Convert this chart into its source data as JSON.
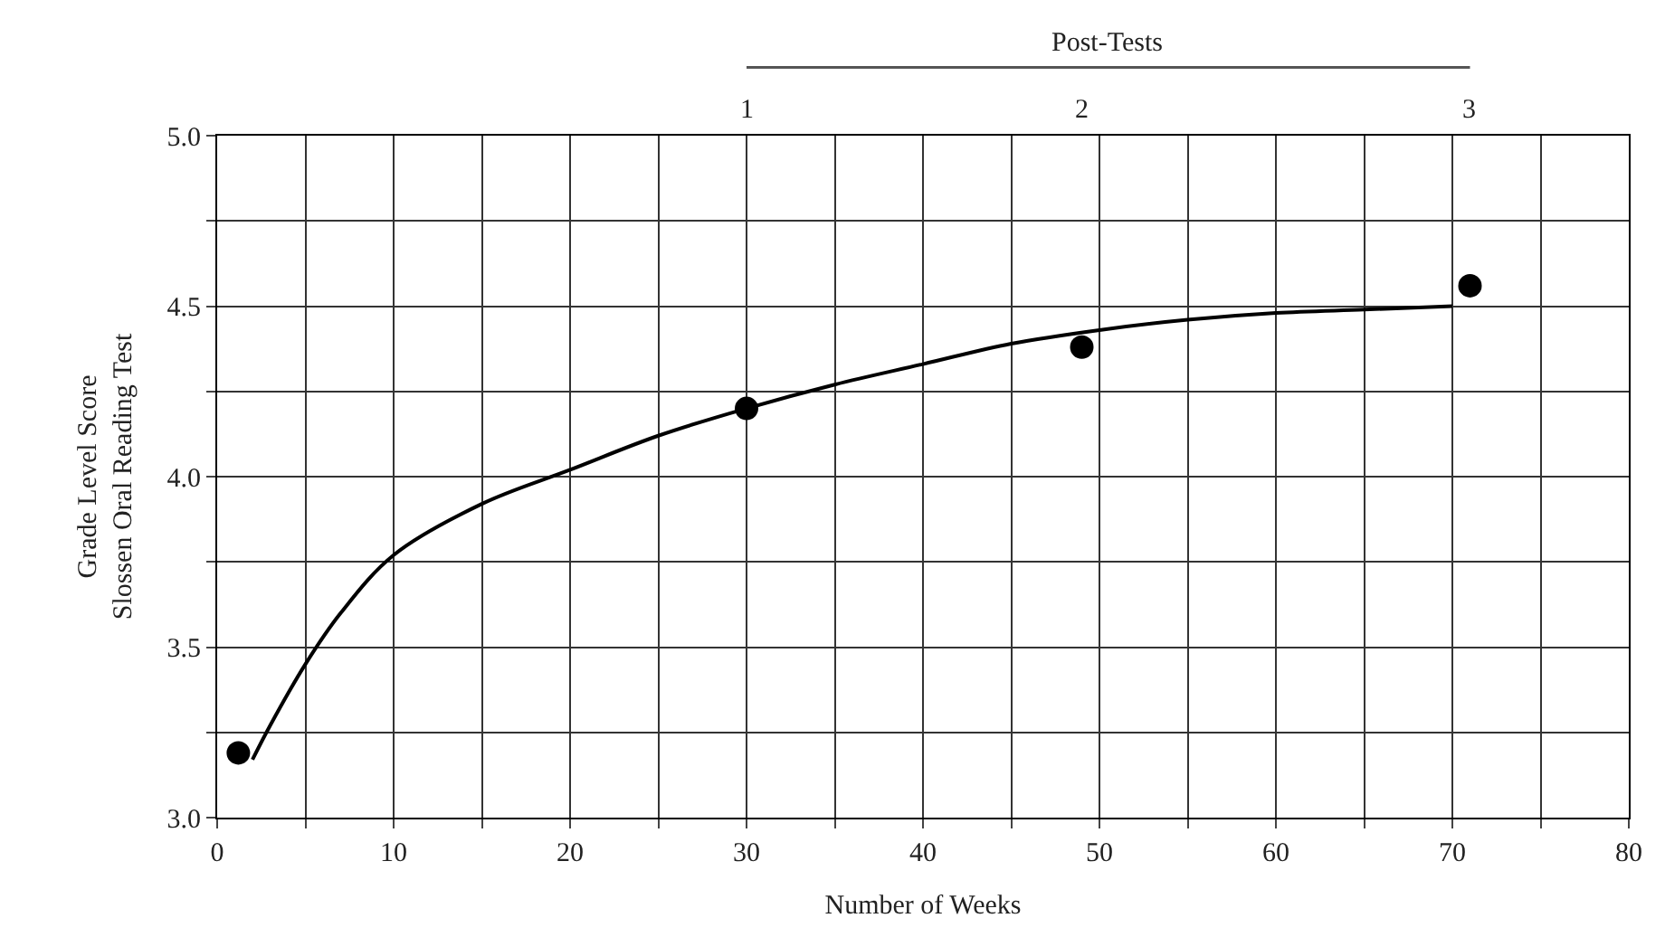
{
  "chart_data": {
    "type": "scatter",
    "xlabel": "Number of Weeks",
    "ylabel": "Grade Level Score\nSlossen Oral Reading Test",
    "annotations": [
      "Post-Tests",
      "1",
      "2",
      "3"
    ],
    "series": [
      {
        "color": "#000000",
        "marker": "circle",
        "x": [
          1.2,
          30,
          49,
          71
        ],
        "values": [
          3.19,
          4.2,
          4.38,
          4.56
        ]
      },
      {
        "type": "line",
        "color": "#000000",
        "marker": "none",
        "x": [
          2,
          3,
          5,
          7,
          10,
          15,
          20,
          25,
          30,
          35,
          40,
          45,
          50,
          55,
          60,
          65,
          70
        ],
        "values": [
          3.17,
          3.27,
          3.45,
          3.6,
          3.77,
          3.92,
          4.02,
          4.12,
          4.2,
          4.27,
          4.33,
          4.39,
          4.43,
          4.46,
          4.48,
          4.49,
          4.5
        ]
      }
    ],
    "xlim": [
      0,
      80
    ],
    "xticks": [
      0,
      {
        "value": 5,
        "label": null
      },
      10,
      {
        "value": 15,
        "label": null
      },
      20,
      {
        "value": 25,
        "label": null
      },
      30,
      {
        "value": 35,
        "label": null
      },
      40,
      {
        "value": 45,
        "label": null
      },
      50,
      {
        "value": 55,
        "label": null
      },
      60,
      {
        "value": 65,
        "label": null
      },
      70,
      {
        "value": 75,
        "label": null
      },
      80
    ],
    "ylim": [
      3.0,
      5.0
    ],
    "yticks": [
      {
        "value": 3,
        "label": "3.0"
      },
      {
        "value": 3.25,
        "label": null
      },
      3.5,
      {
        "value": 3.75,
        "label": null
      },
      {
        "value": 4,
        "label": "4.0"
      },
      {
        "value": 4.25,
        "label": null
      },
      4.5,
      {
        "value": 4.75,
        "label": null
      },
      {
        "value": 5,
        "label": "5.0"
      }
    ],
    "grid": true
  }
}
